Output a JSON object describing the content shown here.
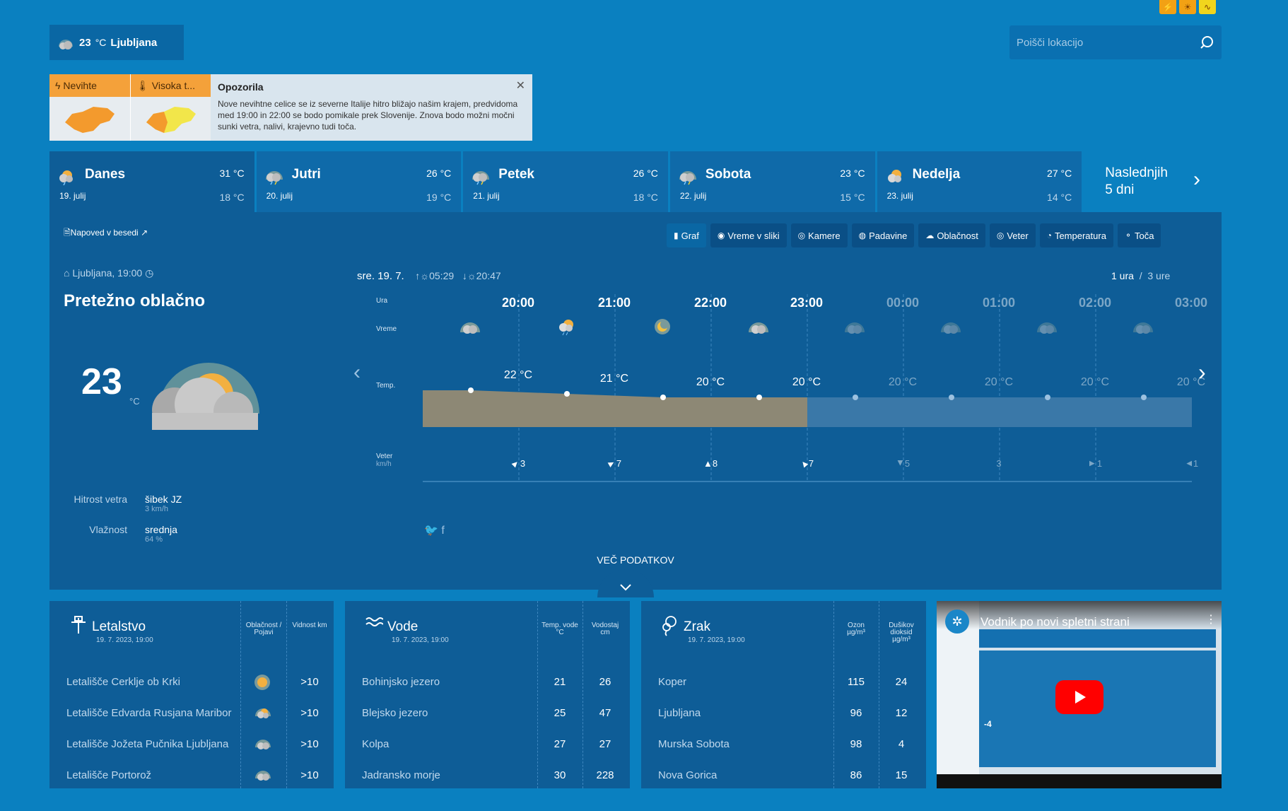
{
  "top_icons": [
    "⚡",
    "☀",
    "∿"
  ],
  "current": {
    "temp": "23",
    "unit": "°C",
    "city": "Ljubljana"
  },
  "search": {
    "placeholder": "Poišči lokacijo"
  },
  "alerts": {
    "tabs": [
      "Nevihte",
      "Visoka t..."
    ],
    "title": "Opozorila",
    "text": "Nove nevihtne celice se iz severne Italije hitro bližajo našim krajem, predvidoma med 19:00 in 22:00 se bodo pomikale prek Slovenije. Znova bodo možni močni sunki vetra, nalivi, krajevno tudi toča.",
    "close": "✕"
  },
  "days": [
    {
      "name": "Danes",
      "date": "19. julij",
      "hi": "31 °C",
      "lo": "18 °C"
    },
    {
      "name": "Jutri",
      "date": "20. julij",
      "hi": "26 °C",
      "lo": "19 °C"
    },
    {
      "name": "Petek",
      "date": "21. julij",
      "hi": "26 °C",
      "lo": "18 °C"
    },
    {
      "name": "Sobota",
      "date": "22. julij",
      "hi": "23 °C",
      "lo": "15 °C"
    },
    {
      "name": "Nedelja",
      "date": "23. julij",
      "hi": "27 °C",
      "lo": "14 °C"
    }
  ],
  "next_days": {
    "line1": "Naslednjih",
    "line2": "5 dni"
  },
  "napoved": "Napoved v besedi",
  "view_buttons": [
    "Graf",
    "Vreme v sliki",
    "Kamere",
    "Padavine",
    "Oblačnost",
    "Veter",
    "Temperatura",
    "Toča"
  ],
  "location_time": "Ljubljana, 19:00",
  "condition": "Pretežno oblačno",
  "temp_big": "23",
  "temp_unit": "°C",
  "wind": {
    "label": "Hitrost vetra",
    "value": "šibek JZ",
    "detail": "3 km/h"
  },
  "humidity": {
    "label": "Vlažnost",
    "value": "srednja",
    "detail": "64 %"
  },
  "forecast": {
    "date": "sre. 19. 7.",
    "sunrise": "05:29",
    "sunset": "20:47",
    "interval_1": "1 ura",
    "interval_sep": "/",
    "interval_3": "3 ure",
    "row_labels": {
      "ura": "Ura",
      "vreme": "Vreme",
      "temp": "Temp.",
      "veter": "Veter",
      "veter_unit": "km/h"
    },
    "hours": [
      "20:00",
      "21:00",
      "22:00",
      "23:00",
      "00:00",
      "01:00",
      "02:00",
      "03:00"
    ],
    "temps": [
      "22 °C",
      "21 °C",
      "20 °C",
      "20 °C",
      "20 °C",
      "20 °C",
      "20 °C",
      "20 °C"
    ],
    "temp_values": [
      22,
      21,
      20,
      20,
      20,
      20,
      20,
      20
    ],
    "wind": [
      "3",
      "7",
      "8",
      "7",
      "5",
      "3",
      "1",
      "1"
    ],
    "wind_dir_deg": [
      45,
      60,
      0,
      -40,
      180,
      null,
      90,
      -90
    ]
  },
  "more": "VEČ PODATKOV",
  "aviation": {
    "title": "Letalstvo",
    "sub": "19. 7. 2023, 19:00",
    "col1": [
      "Oblačnost /",
      "Pojavi"
    ],
    "col2": "Vidnost km",
    "rows": [
      {
        "name": "Letališče Cerklje ob Krki",
        "vis": ">10"
      },
      {
        "name": "Letališče Edvarda Rusjana Maribor",
        "vis": ">10"
      },
      {
        "name": "Letališče Jožeta Pučnika Ljubljana",
        "vis": ">10"
      },
      {
        "name": "Letališče Portorož",
        "vis": ">10"
      }
    ]
  },
  "water": {
    "title": "Vode",
    "sub": "19. 7. 2023, 19:00",
    "col1": [
      "Temp. vode",
      "°C"
    ],
    "col2": [
      "Vodostaj",
      "cm"
    ],
    "rows": [
      {
        "name": "Bohinjsko jezero",
        "t": "21",
        "l": "26"
      },
      {
        "name": "Blejsko jezero",
        "t": "25",
        "l": "47"
      },
      {
        "name": "Kolpa",
        "t": "27",
        "l": "27"
      },
      {
        "name": "Jadransko morje",
        "t": "30",
        "l": "228"
      }
    ]
  },
  "air": {
    "title": "Zrak",
    "sub": "19. 7. 2023, 19:00",
    "col1": [
      "Ozon",
      "µg/m³"
    ],
    "col2": [
      "Dušikov",
      "dioksid",
      "µg/m³"
    ],
    "rows": [
      {
        "name": "Koper",
        "o": "115",
        "n": "24"
      },
      {
        "name": "Ljubljana",
        "o": "96",
        "n": "12"
      },
      {
        "name": "Murska Sobota",
        "o": "98",
        "n": "4"
      },
      {
        "name": "Nova Gorica",
        "o": "86",
        "n": "15"
      }
    ]
  },
  "video": {
    "title": "Vodnik po novi spletni strani",
    "mini_temp": "-4"
  }
}
